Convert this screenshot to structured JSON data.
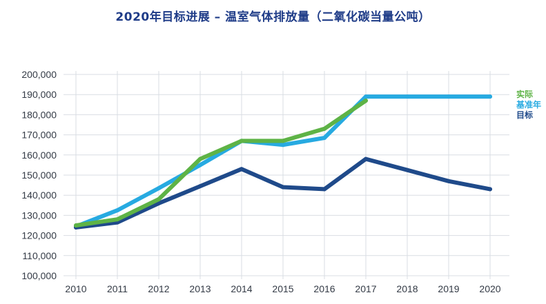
{
  "chart_data": {
    "type": "line",
    "title": "2020年目标进展 – 温室气体排放量（二氧化碳当量公吨）",
    "xlabel": "",
    "ylabel": "",
    "x": [
      2010,
      2011,
      2012,
      2013,
      2014,
      2015,
      2016,
      2017,
      2018,
      2019,
      2020
    ],
    "ylim": [
      100000,
      200000
    ],
    "yticks": [
      100000,
      110000,
      120000,
      130000,
      140000,
      150000,
      160000,
      170000,
      180000,
      190000,
      200000
    ],
    "ytick_labels": [
      "100,000",
      "110,000",
      "120,000",
      "130,000",
      "140,000",
      "150,000",
      "160,000",
      "170,000",
      "180,000",
      "190,000",
      "200,000"
    ],
    "grid": true,
    "legend_position": "right",
    "series": [
      {
        "name": "基准年",
        "color": "#27aae1",
        "values": [
          124500,
          132500,
          143500,
          155000,
          167000,
          165000,
          168500,
          189000,
          189000,
          189000,
          189000
        ]
      },
      {
        "name": "目标",
        "color": "#1f4a8a",
        "values": [
          124000,
          126500,
          136000,
          144500,
          153000,
          144000,
          143000,
          158000,
          152500,
          147000,
          143000
        ]
      },
      {
        "name": "实际",
        "color": "#5eb346",
        "values": [
          125000,
          128000,
          138000,
          158000,
          167000,
          167000,
          173000,
          187000,
          null,
          null,
          null
        ]
      }
    ],
    "legend_order": [
      "实际",
      "基准年",
      "目标"
    ]
  }
}
